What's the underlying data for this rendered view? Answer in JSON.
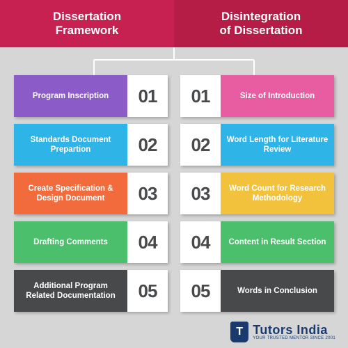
{
  "header": {
    "left": {
      "line1": "Dissertation",
      "line2": "Framework",
      "bg": "#c62151"
    },
    "right": {
      "line1": "Disintegration",
      "line2": "of Dissertation",
      "bg": "#b51d47"
    }
  },
  "connector": {
    "stroke": "#ffffff",
    "stroke_width": 2
  },
  "left_items": [
    {
      "num": "01",
      "label": "Program Inscription",
      "color": "#8b5cc7"
    },
    {
      "num": "02",
      "label": "Standards Document Prepartion",
      "color": "#2fb4e8"
    },
    {
      "num": "03",
      "label": "Create Specification & Design Document",
      "color": "#f26b3c"
    },
    {
      "num": "04",
      "label": "Drafting Comments",
      "color": "#4bbf6b"
    },
    {
      "num": "05",
      "label": "Additional Program Related Documentation",
      "color": "#48494b"
    }
  ],
  "right_items": [
    {
      "num": "01",
      "label": "Size of Introduction",
      "color": "#e85ca1"
    },
    {
      "num": "02",
      "label": "Word Length for Literature Review",
      "color": "#2fb4e8"
    },
    {
      "num": "03",
      "label": "Word Count for Research Methodology",
      "color": "#f2c23c"
    },
    {
      "num": "04",
      "label": "Content in Result Section",
      "color": "#4bbf6b"
    },
    {
      "num": "05",
      "label": "Words in Conclusion",
      "color": "#48494b"
    }
  ],
  "logo": {
    "badge_letter": "T",
    "main": "Tutors India",
    "sub": "YOUR TRUSTED MENTOR SINCE 2001"
  }
}
